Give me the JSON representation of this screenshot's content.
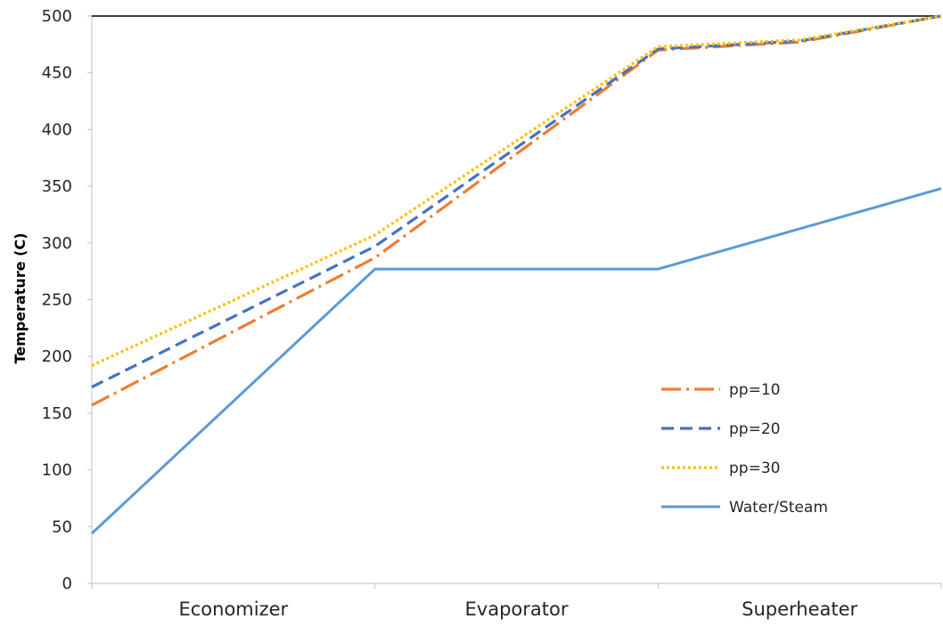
{
  "chart_data": {
    "type": "line",
    "title": "",
    "xlabel": "",
    "ylabel": "Temperature (C)",
    "categories": [
      "Economizer",
      "Evaporator",
      "Superheater"
    ],
    "x_positions": [
      0,
      1,
      2,
      3
    ],
    "y_ticks": [
      0,
      50,
      100,
      150,
      200,
      250,
      300,
      350,
      400,
      450,
      500
    ],
    "ylim": [
      0,
      500
    ],
    "grid": false,
    "legend_position": "right",
    "series": [
      {
        "name": "pp=10",
        "color": "#ED7D31",
        "dash": "dashdot",
        "x": [
          0,
          1,
          2,
          2.5,
          3
        ],
        "values": [
          157,
          287,
          470,
          477,
          500
        ]
      },
      {
        "name": "pp=20",
        "color": "#4472C4",
        "dash": "dashed",
        "x": [
          0,
          1,
          2,
          2.5,
          3
        ],
        "values": [
          173,
          297,
          471,
          478,
          500
        ]
      },
      {
        "name": "pp=30",
        "color": "#FFC000",
        "dash": "dotted",
        "x": [
          0,
          1,
          2,
          2.5,
          3
        ],
        "values": [
          192,
          307,
          473,
          479,
          500
        ]
      },
      {
        "name": "Water/Steam",
        "color": "#5B9BD5",
        "dash": "solid",
        "x": [
          0,
          1,
          2,
          3
        ],
        "values": [
          44,
          277,
          277,
          348
        ]
      }
    ]
  }
}
